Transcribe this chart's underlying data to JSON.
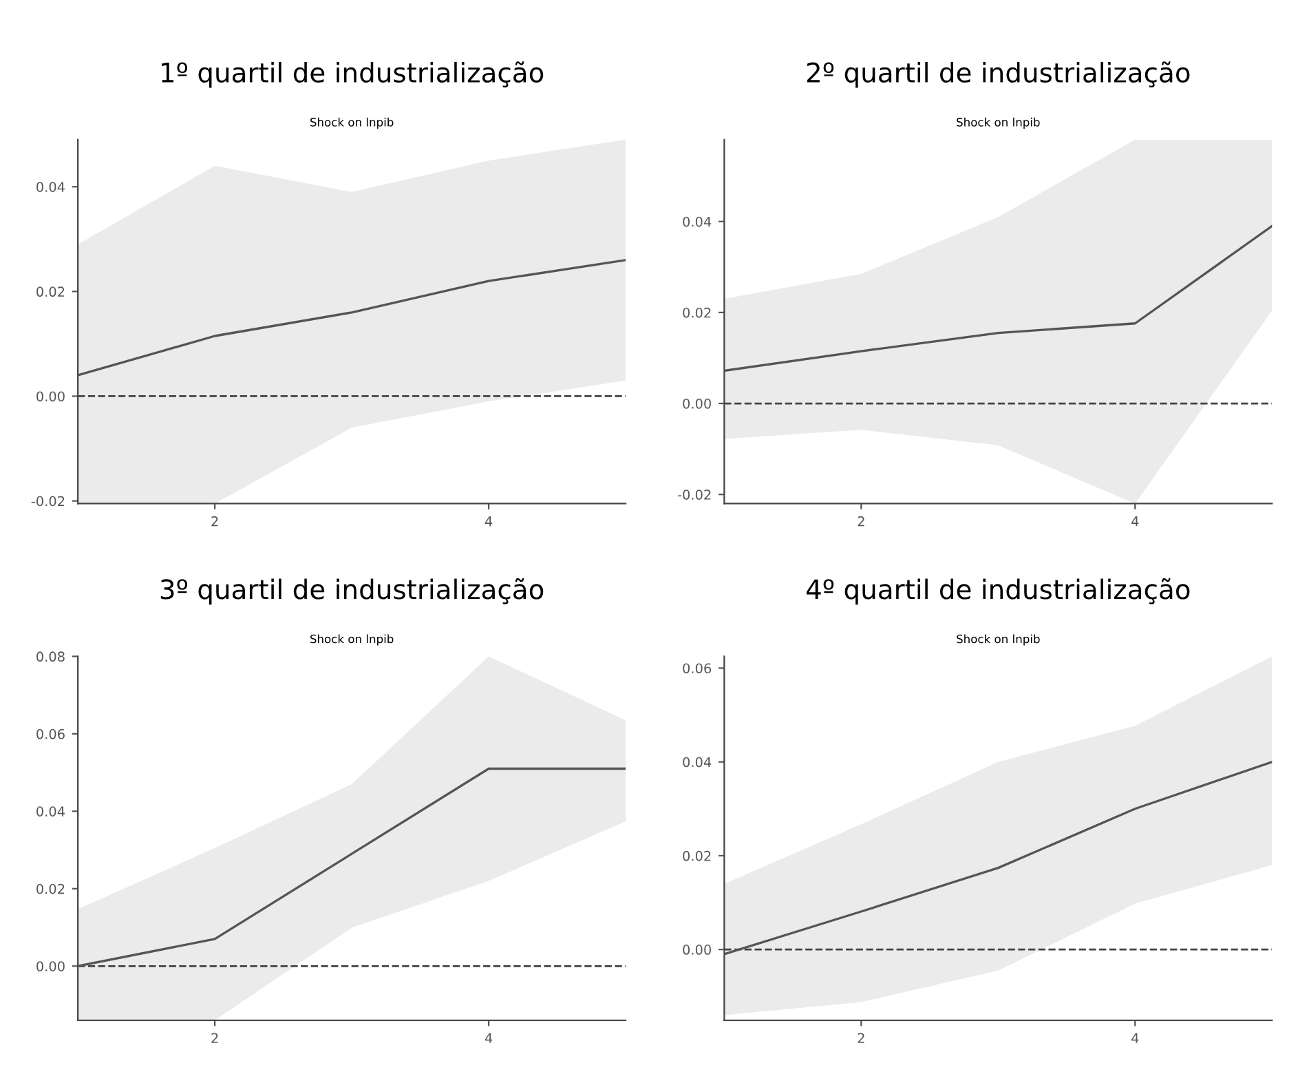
{
  "chart_data": [
    {
      "type": "line",
      "title": "1º quartil de industrialização",
      "subtitle": "Shock on lnpib",
      "x": [
        1,
        2,
        3,
        4,
        5
      ],
      "xlim": [
        1,
        5
      ],
      "xticks": [
        2,
        4
      ],
      "ylim": [
        -0.0205,
        0.049
      ],
      "yticks": [
        {
          "value": -0.02,
          "label": "-0.02"
        },
        {
          "value": 0,
          "label": "0.00"
        },
        {
          "value": 0.02,
          "label": "0.02"
        },
        {
          "value": 0.04,
          "label": "0.04"
        }
      ],
      "ref_lines": [
        {
          "axis": "y",
          "value": 0,
          "color": "#444444",
          "line_style": "dashed"
        }
      ],
      "grid": false,
      "legend": false,
      "series": [
        {
          "color": "#555555",
          "values": [
            0.004,
            0.0115,
            0.016,
            0.022,
            0.026
          ],
          "lower": [
            -0.0205,
            -0.0205,
            -0.006,
            -0.001,
            0.003
          ],
          "upper": [
            0.029,
            0.044,
            0.039,
            0.045,
            0.049
          ]
        }
      ]
    },
    {
      "type": "line",
      "title": "2º quartil de industrialização",
      "subtitle": "Shock on lnpib",
      "x": [
        1,
        2,
        3,
        4,
        5
      ],
      "xlim": [
        1,
        5
      ],
      "xticks": [
        2,
        4
      ],
      "ylim": [
        -0.022,
        0.058
      ],
      "yticks": [
        {
          "value": -0.02,
          "label": "-0.02"
        },
        {
          "value": 0,
          "label": "0.00"
        },
        {
          "value": 0.02,
          "label": "0.02"
        },
        {
          "value": 0.04,
          "label": "0.04"
        }
      ],
      "ref_lines": [
        {
          "axis": "y",
          "value": 0,
          "color": "#444444",
          "line_style": "dashed"
        }
      ],
      "grid": false,
      "legend": false,
      "series": [
        {
          "color": "#555555",
          "values": [
            0.0072,
            0.0115,
            0.0155,
            0.0176,
            0.039
          ],
          "lower": [
            -0.0078,
            -0.0058,
            -0.0092,
            -0.022,
            0.0204
          ],
          "upper": [
            0.023,
            0.0285,
            0.041,
            0.058,
            0.058
          ]
        }
      ]
    },
    {
      "type": "line",
      "title": "3º quartil de industrialização",
      "subtitle": "Shock on lnpib",
      "x": [
        1,
        2,
        3,
        4,
        5
      ],
      "xlim": [
        1,
        5
      ],
      "xticks": [
        2,
        4
      ],
      "ylim": [
        -0.014,
        0.08
      ],
      "yticks": [
        {
          "value": 0,
          "label": "0.00"
        },
        {
          "value": 0.02,
          "label": "0.02"
        },
        {
          "value": 0.04,
          "label": "0.04"
        },
        {
          "value": 0.06,
          "label": "0.06"
        },
        {
          "value": 0.08,
          "label": "0.08"
        }
      ],
      "ref_lines": [
        {
          "axis": "y",
          "value": 0,
          "color": "#444444",
          "line_style": "dashed"
        }
      ],
      "grid": false,
      "legend": false,
      "series": [
        {
          "color": "#555555",
          "values": [
            0.0,
            0.007,
            0.029,
            0.051,
            0.051
          ],
          "lower": [
            -0.014,
            -0.014,
            0.0099,
            0.022,
            0.0374
          ],
          "upper": [
            0.0147,
            0.0305,
            0.047,
            0.08,
            0.0635
          ]
        }
      ]
    },
    {
      "type": "line",
      "title": "4º quartil de industrialização",
      "subtitle": "Shock on lnpib",
      "x": [
        1,
        2,
        3,
        4,
        5
      ],
      "xlim": [
        1,
        5
      ],
      "xticks": [
        2,
        4
      ],
      "ylim": [
        -0.0151,
        0.0625
      ],
      "yticks": [
        {
          "value": 0,
          "label": "0.00"
        },
        {
          "value": 0.02,
          "label": "0.02"
        },
        {
          "value": 0.04,
          "label": "0.04"
        },
        {
          "value": 0.06,
          "label": "0.06"
        }
      ],
      "ref_lines": [
        {
          "axis": "y",
          "value": 0,
          "color": "#444444",
          "line_style": "dashed"
        }
      ],
      "grid": false,
      "legend": false,
      "series": [
        {
          "color": "#555555",
          "values": [
            -0.001,
            0.0081,
            0.0174,
            0.03,
            0.04
          ],
          "lower": [
            -0.014,
            -0.0112,
            -0.0045,
            0.0098,
            0.018
          ],
          "upper": [
            0.014,
            0.0267,
            0.04,
            0.0477,
            0.0625
          ]
        }
      ]
    }
  ]
}
